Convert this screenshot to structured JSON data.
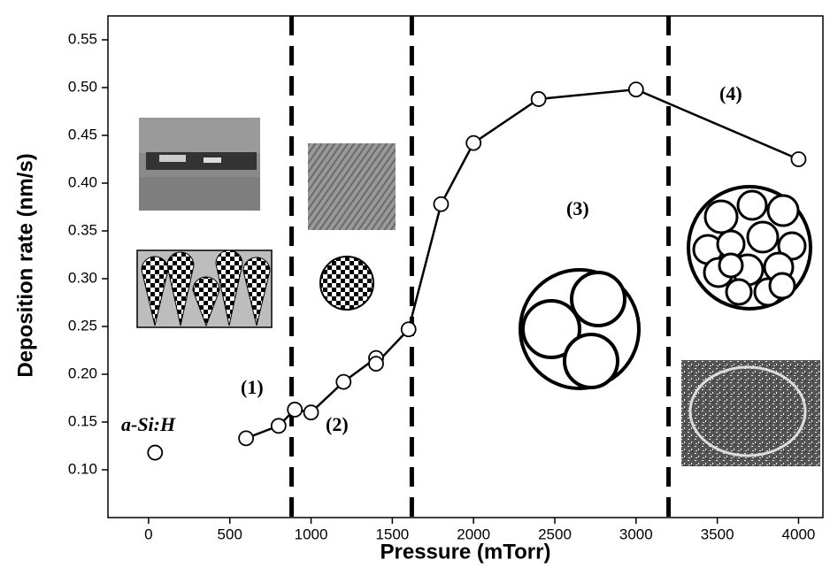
{
  "chart_data": {
    "type": "line",
    "xlabel": "Pressure (mTorr)",
    "ylabel": "Deposition rate (nm/s)",
    "xlim": [
      -250,
      4150
    ],
    "ylim": [
      0.05,
      0.575
    ],
    "xticks": [
      0,
      500,
      1000,
      1500,
      2000,
      2500,
      3000,
      3500,
      4000
    ],
    "yticks": [
      {
        "value": 0.1,
        "label": "0.10"
      },
      0.15,
      {
        "value": 0.2,
        "label": "0.20"
      },
      0.25,
      {
        "value": 0.3,
        "label": "0.30"
      },
      0.35,
      {
        "value": 0.4,
        "label": "0.40"
      },
      0.45,
      {
        "value": 0.5,
        "label": "0.50"
      },
      0.55
    ],
    "series": [
      {
        "color": "#000000",
        "show_line": false,
        "x": [
          40
        ],
        "values": [
          0.118
        ]
      },
      {
        "color": "#000000",
        "show_line": true,
        "x": [
          600,
          800,
          900,
          1000,
          1200,
          1400,
          1400,
          1600,
          1800,
          2000,
          2400,
          3000,
          4000
        ],
        "values": [
          0.133,
          0.146,
          0.163,
          0.16,
          0.192,
          0.217,
          0.211,
          0.247,
          0.378,
          0.442,
          0.488,
          0.498,
          0.425
        ]
      }
    ],
    "vlines": [
      880,
      1620,
      3200
    ],
    "annotations": [
      "a-Si:H",
      "(1)",
      "(2)",
      "(3)",
      "(4)"
    ]
  }
}
